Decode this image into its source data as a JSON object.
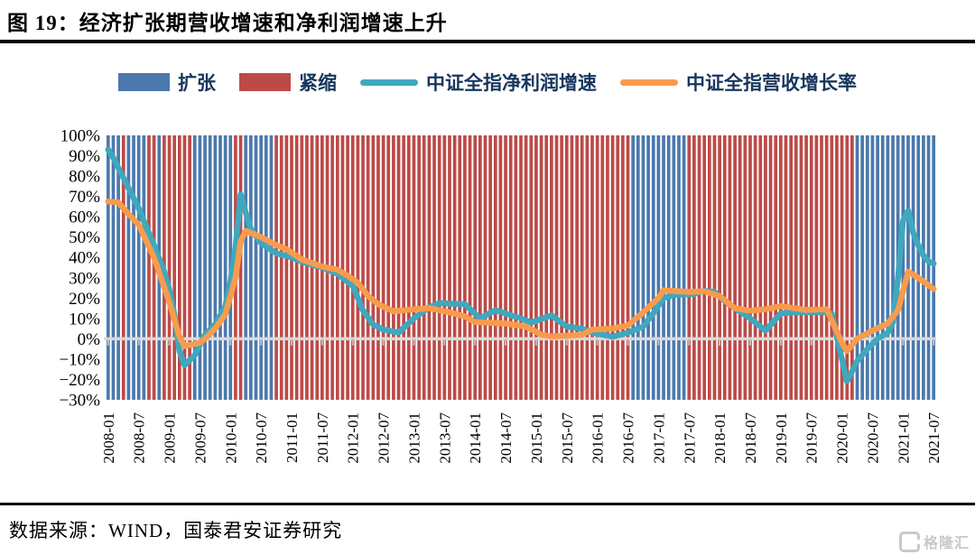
{
  "figure": {
    "title": "图 19：经济扩张期营收增速和净利润增速上升",
    "source": "数据来源：WIND，国泰君安证券研究",
    "watermark": "格隆汇"
  },
  "legend": [
    {
      "label": "扩张",
      "type": "bar",
      "color": "#4b79ad"
    },
    {
      "label": "紧缩",
      "type": "bar",
      "color": "#bc4b48"
    },
    {
      "label": "中证全指净利润增速",
      "type": "line",
      "color": "#3fa8be"
    },
    {
      "label": "中证全指营收增长率",
      "type": "line",
      "color": "#f99b4c"
    }
  ],
  "chart_data": {
    "type": "combo-bar-line",
    "x_start": "2008-01",
    "x_end": "2021-07",
    "ylim": [
      -30,
      100
    ],
    "y_tick_labels": [
      "100%",
      "90%",
      "80%",
      "70%",
      "60%",
      "50%",
      "40%",
      "30%",
      "20%",
      "10%",
      "0%",
      "−10%",
      "−20%",
      "−30%"
    ],
    "y_tick_values": [
      100,
      90,
      80,
      70,
      60,
      50,
      40,
      30,
      20,
      10,
      0,
      -10,
      -20,
      -30
    ],
    "x_tick_labels": [
      "2008-01",
      "2008-07",
      "2009-01",
      "2009-07",
      "2010-01",
      "2010-07",
      "2011-01",
      "2011-07",
      "2012-01",
      "2012-07",
      "2013-01",
      "2013-07",
      "2014-01",
      "2014-07",
      "2015-01",
      "2015-07",
      "2016-01",
      "2016-07",
      "2017-01",
      "2017-07",
      "2018-01",
      "2018-07",
      "2019-01",
      "2019-07",
      "2020-01",
      "2020-07",
      "2021-01",
      "2021-07"
    ],
    "regime_bands": [
      {
        "from": "2008-01",
        "to": "2008-03",
        "regime": "扩张"
      },
      {
        "from": "2008-04",
        "to": "2008-04",
        "regime": "紧缩"
      },
      {
        "from": "2008-05",
        "to": "2008-08",
        "regime": "扩张"
      },
      {
        "from": "2008-09",
        "to": "2008-10",
        "regime": "紧缩"
      },
      {
        "from": "2008-11",
        "to": "2008-11",
        "regime": "扩张"
      },
      {
        "from": "2008-12",
        "to": "2009-05",
        "regime": "紧缩"
      },
      {
        "from": "2009-06",
        "to": "2010-01",
        "regime": "扩张"
      },
      {
        "from": "2010-02",
        "to": "2010-03",
        "regime": "紧缩"
      },
      {
        "from": "2010-04",
        "to": "2010-09",
        "regime": "扩张"
      },
      {
        "from": "2010-10",
        "to": "2016-07",
        "regime": "紧缩"
      },
      {
        "from": "2016-08",
        "to": "2017-06",
        "regime": "扩张"
      },
      {
        "from": "2017-07",
        "to": "2020-03",
        "regime": "紧缩"
      },
      {
        "from": "2020-04",
        "to": "2021-07",
        "regime": "扩张"
      }
    ],
    "series": [
      {
        "name": "中证全指净利润增速",
        "color": "#3fa8be",
        "points": [
          [
            "2008-01",
            93
          ],
          [
            "2008-02",
            89
          ],
          [
            "2008-04",
            79
          ],
          [
            "2008-07",
            64
          ],
          [
            "2008-10",
            46
          ],
          [
            "2008-12",
            33
          ],
          [
            "2009-01",
            24
          ],
          [
            "2009-02",
            12
          ],
          [
            "2009-03",
            -6
          ],
          [
            "2009-04",
            -13
          ],
          [
            "2009-06",
            -8
          ],
          [
            "2009-08",
            2
          ],
          [
            "2009-10",
            7
          ],
          [
            "2009-12",
            16
          ],
          [
            "2010-01",
            28
          ],
          [
            "2010-02",
            45
          ],
          [
            "2010-03",
            71
          ],
          [
            "2010-04",
            62
          ],
          [
            "2010-05",
            54
          ],
          [
            "2010-07",
            47
          ],
          [
            "2010-10",
            42
          ],
          [
            "2011-01",
            40
          ],
          [
            "2011-04",
            37
          ],
          [
            "2011-07",
            35
          ],
          [
            "2011-10",
            32
          ],
          [
            "2012-01",
            26
          ],
          [
            "2012-03",
            14
          ],
          [
            "2012-05",
            7
          ],
          [
            "2012-07",
            4.5
          ],
          [
            "2012-10",
            3
          ],
          [
            "2013-01",
            10
          ],
          [
            "2013-04",
            15.5
          ],
          [
            "2013-06",
            17.5
          ],
          [
            "2013-11",
            17
          ],
          [
            "2014-02",
            10
          ],
          [
            "2014-05",
            14
          ],
          [
            "2014-10",
            10
          ],
          [
            "2014-12",
            8
          ],
          [
            "2015-04",
            11.5
          ],
          [
            "2015-07",
            6
          ],
          [
            "2015-10",
            5
          ],
          [
            "2015-12",
            3
          ],
          [
            "2016-04",
            1
          ],
          [
            "2016-07",
            3
          ],
          [
            "2016-10",
            6
          ],
          [
            "2016-12",
            12.5
          ],
          [
            "2017-02",
            20
          ],
          [
            "2017-04",
            21.5
          ],
          [
            "2017-08",
            22
          ],
          [
            "2017-10",
            23.5
          ],
          [
            "2017-12",
            23
          ],
          [
            "2018-02",
            18.5
          ],
          [
            "2018-04",
            15
          ],
          [
            "2018-07",
            10
          ],
          [
            "2018-10",
            4
          ],
          [
            "2019-01",
            12.5
          ],
          [
            "2019-04",
            13
          ],
          [
            "2019-07",
            13
          ],
          [
            "2019-10",
            13
          ],
          [
            "2019-11",
            12.5
          ],
          [
            "2020-01",
            -10
          ],
          [
            "2020-02",
            -21
          ],
          [
            "2020-04",
            -11
          ],
          [
            "2020-06",
            -5
          ],
          [
            "2020-08",
            0
          ],
          [
            "2020-10",
            3
          ],
          [
            "2020-11",
            8
          ],
          [
            "2020-12",
            30
          ],
          [
            "2021-01",
            58
          ],
          [
            "2021-02",
            63
          ],
          [
            "2021-03",
            52
          ],
          [
            "2021-04",
            46
          ],
          [
            "2021-05",
            41
          ],
          [
            "2021-06",
            38
          ],
          [
            "2021-07",
            37
          ]
        ]
      },
      {
        "name": "中证全指营收增长率",
        "color": "#f99b4c",
        "points": [
          [
            "2008-01",
            67.5
          ],
          [
            "2008-03",
            67
          ],
          [
            "2008-04",
            64
          ],
          [
            "2008-07",
            56
          ],
          [
            "2008-10",
            40
          ],
          [
            "2009-01",
            18
          ],
          [
            "2009-03",
            1
          ],
          [
            "2009-04",
            -3.5
          ],
          [
            "2009-07",
            -2
          ],
          [
            "2009-08",
            0
          ],
          [
            "2009-10",
            5
          ],
          [
            "2009-12",
            12
          ],
          [
            "2010-02",
            30
          ],
          [
            "2010-03",
            48
          ],
          [
            "2010-04",
            53
          ],
          [
            "2010-07",
            50
          ],
          [
            "2010-10",
            46
          ],
          [
            "2010-12",
            44
          ],
          [
            "2011-03",
            39
          ],
          [
            "2011-07",
            35.5
          ],
          [
            "2011-10",
            34
          ],
          [
            "2011-12",
            31
          ],
          [
            "2012-02",
            27.5
          ],
          [
            "2012-04",
            21
          ],
          [
            "2012-06",
            17
          ],
          [
            "2012-09",
            13.5
          ],
          [
            "2013-01",
            14.5
          ],
          [
            "2013-04",
            15
          ],
          [
            "2013-08",
            13
          ],
          [
            "2013-11",
            11
          ],
          [
            "2014-01",
            8.2
          ],
          [
            "2014-07",
            7.5
          ],
          [
            "2014-11",
            6
          ],
          [
            "2015-02",
            2
          ],
          [
            "2015-04",
            1.2
          ],
          [
            "2015-07",
            1.5
          ],
          [
            "2015-10",
            2
          ],
          [
            "2015-12",
            4.5
          ],
          [
            "2016-04",
            5
          ],
          [
            "2016-07",
            6.5
          ],
          [
            "2016-10",
            13
          ],
          [
            "2017-01",
            20
          ],
          [
            "2017-02",
            23.8
          ],
          [
            "2017-07",
            23
          ],
          [
            "2017-10",
            23.3
          ],
          [
            "2018-01",
            21
          ],
          [
            "2018-04",
            15
          ],
          [
            "2018-07",
            13.8
          ],
          [
            "2018-10",
            14.5
          ],
          [
            "2019-01",
            16
          ],
          [
            "2019-06",
            14.2
          ],
          [
            "2019-10",
            14.5
          ],
          [
            "2020-01",
            -2
          ],
          [
            "2020-02",
            -6
          ],
          [
            "2020-04",
            0
          ],
          [
            "2020-07",
            4
          ],
          [
            "2020-10",
            7.5
          ],
          [
            "2020-12",
            14
          ],
          [
            "2021-02",
            33
          ],
          [
            "2021-04",
            30
          ],
          [
            "2021-07",
            24.5
          ]
        ]
      }
    ],
    "colors": {
      "expansion_bar": "#4b79ad",
      "contraction_bar": "#bc4b48",
      "zero_line": "#d9d9d9",
      "axis_tick": "#bfbfbf"
    }
  }
}
